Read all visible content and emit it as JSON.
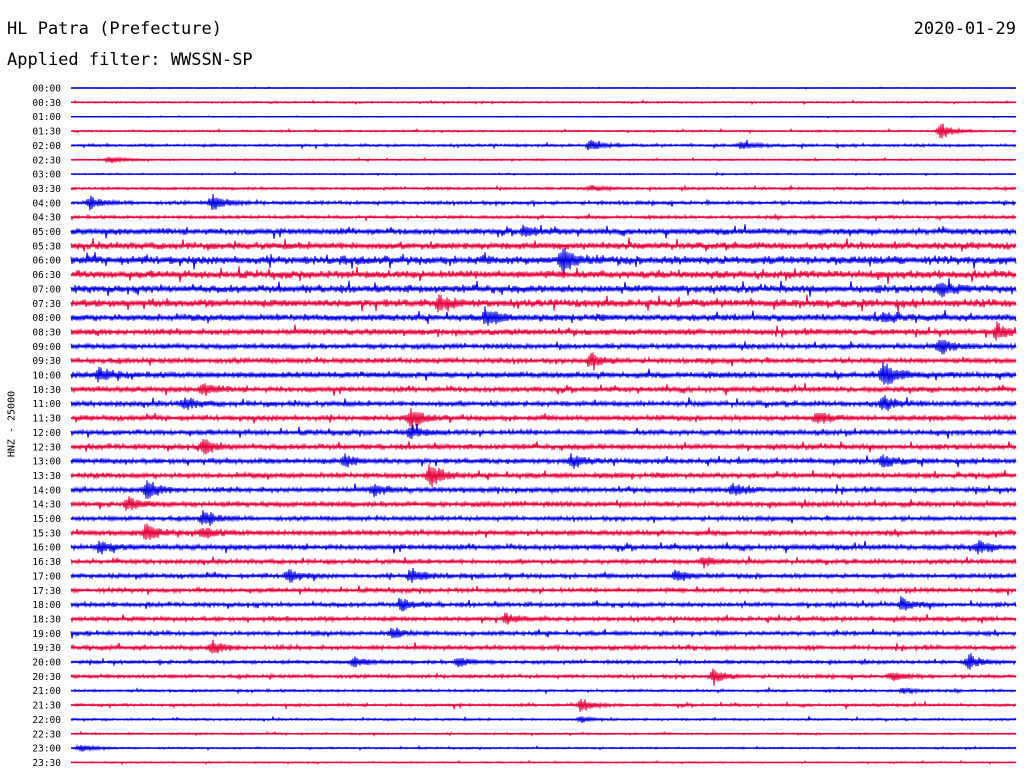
{
  "header": {
    "station": "HL Patra (Prefecture)",
    "date": "2020-01-29",
    "filter_label": "Applied filter:",
    "filter_name": "WWSSN-SP"
  },
  "channel_label": "HNZ - 25000",
  "colors": {
    "trace_a": "#0000e6",
    "trace_b": "#e8003a"
  },
  "chart_data": {
    "type": "line",
    "subtype": "helicorder",
    "title": "HL Patra (Prefecture)",
    "date": "2020-01-29",
    "filter": "WWSSN-SP",
    "ylabel": "HNZ - 25000",
    "row_interval_minutes": 30,
    "row_labels": [
      "00:00",
      "00:30",
      "01:00",
      "01:30",
      "02:00",
      "02:30",
      "03:00",
      "03:30",
      "04:00",
      "04:30",
      "05:00",
      "05:30",
      "06:00",
      "06:30",
      "07:00",
      "07:30",
      "08:00",
      "08:30",
      "09:00",
      "09:30",
      "10:00",
      "10:30",
      "11:00",
      "11:30",
      "12:00",
      "12:30",
      "13:00",
      "13:30",
      "14:00",
      "14:30",
      "15:00",
      "15:30",
      "16:00",
      "16:30",
      "17:00",
      "17:30",
      "18:00",
      "18:30",
      "19:00",
      "19:30",
      "20:00",
      "20:30",
      "21:00",
      "21:30",
      "22:00",
      "22:30",
      "23:00",
      "23:30"
    ],
    "series_colors": [
      "#0000e6",
      "#e8003a"
    ],
    "noise_level": [
      0.5,
      1,
      0.5,
      1,
      1.5,
      1,
      0.8,
      1.5,
      2,
      1.8,
      3.5,
      4,
      5,
      4.5,
      4.5,
      4.5,
      4,
      3.5,
      3,
      3,
      3.5,
      3,
      3,
      3,
      3,
      3,
      3,
      3,
      3,
      3,
      2.5,
      3,
      3,
      2.5,
      2.5,
      2.5,
      2.5,
      2.5,
      2.5,
      2.5,
      2,
      2,
      1.5,
      1.5,
      1.2,
      1,
      1,
      0.8
    ],
    "events": [
      {
        "row": 3,
        "pos": 0.92,
        "amp": 9
      },
      {
        "row": 4,
        "pos": 0.55,
        "amp": 5
      },
      {
        "row": 4,
        "pos": 0.71,
        "amp": 4
      },
      {
        "row": 5,
        "pos": 0.04,
        "amp": 4
      },
      {
        "row": 7,
        "pos": 0.55,
        "amp": 3
      },
      {
        "row": 8,
        "pos": 0.02,
        "amp": 6
      },
      {
        "row": 8,
        "pos": 0.15,
        "amp": 8
      },
      {
        "row": 10,
        "pos": 0.48,
        "amp": 5
      },
      {
        "row": 12,
        "pos": 0.52,
        "amp": 12
      },
      {
        "row": 14,
        "pos": 0.92,
        "amp": 7
      },
      {
        "row": 15,
        "pos": 0.39,
        "amp": 8
      },
      {
        "row": 16,
        "pos": 0.44,
        "amp": 8
      },
      {
        "row": 16,
        "pos": 0.86,
        "amp": 6
      },
      {
        "row": 17,
        "pos": 0.98,
        "amp": 8
      },
      {
        "row": 18,
        "pos": 0.92,
        "amp": 8
      },
      {
        "row": 19,
        "pos": 0.55,
        "amp": 7
      },
      {
        "row": 20,
        "pos": 0.03,
        "amp": 7
      },
      {
        "row": 20,
        "pos": 0.86,
        "amp": 14
      },
      {
        "row": 21,
        "pos": 0.14,
        "amp": 6
      },
      {
        "row": 22,
        "pos": 0.12,
        "amp": 6
      },
      {
        "row": 22,
        "pos": 0.86,
        "amp": 7
      },
      {
        "row": 23,
        "pos": 0.36,
        "amp": 9
      },
      {
        "row": 23,
        "pos": 0.79,
        "amp": 6
      },
      {
        "row": 24,
        "pos": 0.36,
        "amp": 6
      },
      {
        "row": 25,
        "pos": 0.14,
        "amp": 8
      },
      {
        "row": 26,
        "pos": 0.29,
        "amp": 6
      },
      {
        "row": 26,
        "pos": 0.53,
        "amp": 6
      },
      {
        "row": 26,
        "pos": 0.86,
        "amp": 6
      },
      {
        "row": 27,
        "pos": 0.38,
        "amp": 12
      },
      {
        "row": 28,
        "pos": 0.08,
        "amp": 9
      },
      {
        "row": 28,
        "pos": 0.32,
        "amp": 6
      },
      {
        "row": 28,
        "pos": 0.7,
        "amp": 6
      },
      {
        "row": 29,
        "pos": 0.06,
        "amp": 7
      },
      {
        "row": 30,
        "pos": 0.14,
        "amp": 8
      },
      {
        "row": 31,
        "pos": 0.08,
        "amp": 9
      },
      {
        "row": 31,
        "pos": 0.14,
        "amp": 6
      },
      {
        "row": 32,
        "pos": 0.03,
        "amp": 6
      },
      {
        "row": 32,
        "pos": 0.96,
        "amp": 6
      },
      {
        "row": 33,
        "pos": 0.67,
        "amp": 5
      },
      {
        "row": 34,
        "pos": 0.23,
        "amp": 7
      },
      {
        "row": 34,
        "pos": 0.36,
        "amp": 8
      },
      {
        "row": 34,
        "pos": 0.64,
        "amp": 6
      },
      {
        "row": 36,
        "pos": 0.35,
        "amp": 6
      },
      {
        "row": 36,
        "pos": 0.88,
        "amp": 6
      },
      {
        "row": 37,
        "pos": 0.46,
        "amp": 5
      },
      {
        "row": 38,
        "pos": 0.34,
        "amp": 5
      },
      {
        "row": 39,
        "pos": 0.15,
        "amp": 6
      },
      {
        "row": 40,
        "pos": 0.3,
        "amp": 5
      },
      {
        "row": 40,
        "pos": 0.41,
        "amp": 5
      },
      {
        "row": 40,
        "pos": 0.95,
        "amp": 7
      },
      {
        "row": 41,
        "pos": 0.68,
        "amp": 7
      },
      {
        "row": 41,
        "pos": 0.87,
        "amp": 5
      },
      {
        "row": 42,
        "pos": 0.88,
        "amp": 3
      },
      {
        "row": 43,
        "pos": 0.54,
        "amp": 7
      },
      {
        "row": 44,
        "pos": 0.54,
        "amp": 3
      },
      {
        "row": 46,
        "pos": 0.01,
        "amp": 4
      }
    ]
  }
}
